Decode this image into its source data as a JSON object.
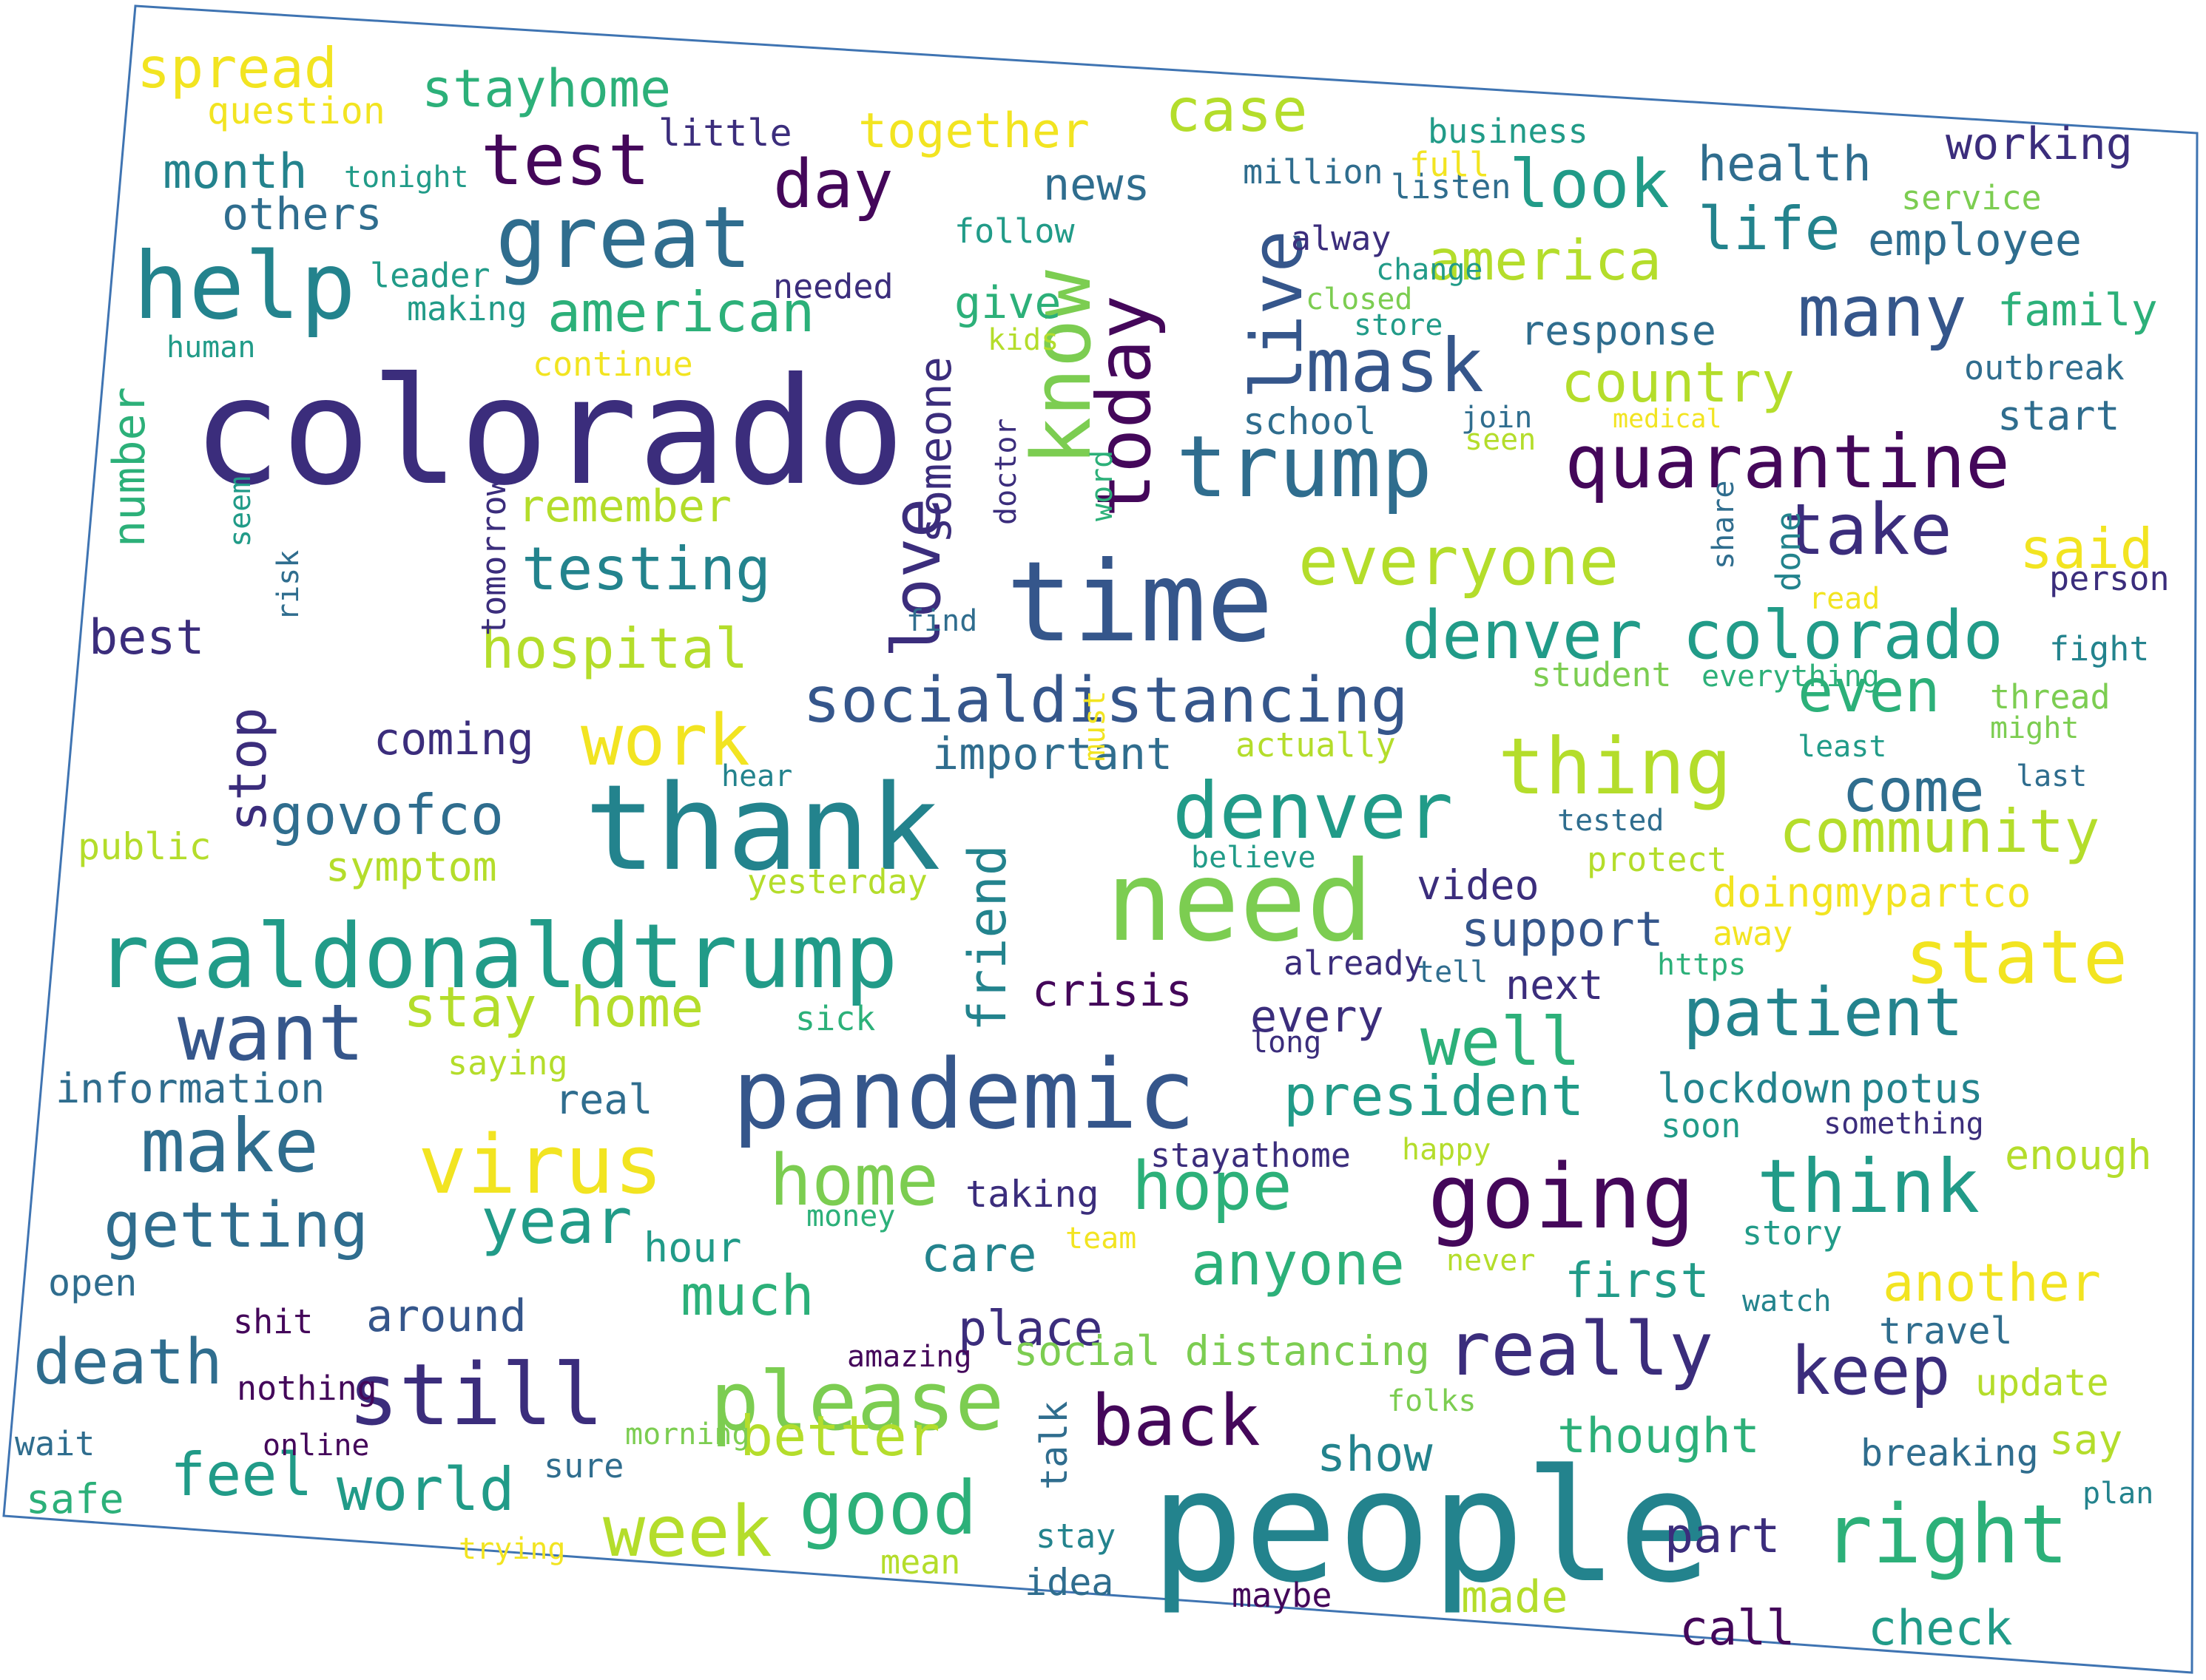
{
  "palette": {
    "purple": "#44075a",
    "indigo": "#3b2d7c",
    "blue": "#35568b",
    "steel": "#2f6d8e",
    "teal": "#23838d",
    "tealgreen": "#219b88",
    "green": "#2cb079",
    "lime": "#7ccd51",
    "yellowgreen": "#b4dd2b",
    "yellow": "#f2e421",
    "outline": "#3f74b2"
  },
  "words": [
    {
      "text": "colorado",
      "color": "indigo"
    },
    {
      "text": "people",
      "color": "teal"
    },
    {
      "text": "time",
      "color": "blue"
    },
    {
      "text": "thank",
      "color": "teal"
    },
    {
      "text": "need",
      "color": "lime"
    },
    {
      "text": "realdonaldtrump",
      "color": "tealgreen"
    },
    {
      "text": "pandemic",
      "color": "blue"
    },
    {
      "text": "going",
      "color": "purple"
    },
    {
      "text": "today",
      "color": "purple"
    },
    {
      "text": "trump",
      "color": "steel"
    },
    {
      "text": "help",
      "color": "teal"
    },
    {
      "text": "great",
      "color": "steel"
    },
    {
      "text": "know",
      "color": "lime"
    },
    {
      "text": "quarantine",
      "color": "purple"
    },
    {
      "text": "virus",
      "color": "yellow"
    },
    {
      "text": "live",
      "color": "blue"
    },
    {
      "text": "still",
      "color": "indigo"
    },
    {
      "text": "denver",
      "color": "tealgreen"
    },
    {
      "text": "please",
      "color": "lime"
    },
    {
      "text": "right",
      "color": "green"
    },
    {
      "text": "thing",
      "color": "yellowgreen"
    },
    {
      "text": "state",
      "color": "yellow"
    },
    {
      "text": "socialdistancing",
      "color": "blue"
    },
    {
      "text": "want",
      "color": "blue"
    },
    {
      "text": "make",
      "color": "steel"
    },
    {
      "text": "think",
      "color": "tealgreen"
    },
    {
      "text": "test",
      "color": "purple"
    },
    {
      "text": "mask",
      "color": "blue"
    },
    {
      "text": "really",
      "color": "indigo"
    },
    {
      "text": "good",
      "color": "green"
    },
    {
      "text": "week",
      "color": "yellowgreen"
    },
    {
      "text": "work",
      "color": "yellow"
    },
    {
      "text": "love",
      "color": "indigo"
    },
    {
      "text": "home",
      "color": "lime"
    },
    {
      "text": "back",
      "color": "purple"
    },
    {
      "text": "hope",
      "color": "green"
    },
    {
      "text": "many",
      "color": "blue"
    },
    {
      "text": "take",
      "color": "indigo"
    },
    {
      "text": "day",
      "color": "purple"
    },
    {
      "text": "look",
      "color": "tealgreen"
    },
    {
      "text": "keep",
      "color": "indigo"
    },
    {
      "text": "denver colorado",
      "color": "tealgreen"
    },
    {
      "text": "everyone",
      "color": "yellowgreen"
    },
    {
      "text": "patient",
      "color": "teal"
    },
    {
      "text": "well",
      "color": "green"
    },
    {
      "text": "death",
      "color": "steel"
    },
    {
      "text": "case",
      "color": "yellowgreen"
    },
    {
      "text": "getting",
      "color": "steel"
    },
    {
      "text": "year",
      "color": "tealgreen"
    },
    {
      "text": "testing",
      "color": "teal"
    },
    {
      "text": "anyone",
      "color": "green"
    },
    {
      "text": "president",
      "color": "tealgreen"
    },
    {
      "text": "community",
      "color": "yellowgreen"
    },
    {
      "text": "world",
      "color": "tealgreen"
    },
    {
      "text": "feel",
      "color": "tealgreen"
    },
    {
      "text": "even",
      "color": "green"
    },
    {
      "text": "american",
      "color": "green"
    },
    {
      "text": "much",
      "color": "green"
    },
    {
      "text": "better",
      "color": "yellowgreen"
    },
    {
      "text": "hospital",
      "color": "yellowgreen"
    },
    {
      "text": "govofco",
      "color": "steel"
    },
    {
      "text": "stay home",
      "color": "yellowgreen"
    },
    {
      "text": "country",
      "color": "yellowgreen"
    },
    {
      "text": "america",
      "color": "yellowgreen"
    },
    {
      "text": "life",
      "color": "teal"
    },
    {
      "text": "come",
      "color": "steel"
    },
    {
      "text": "said",
      "color": "yellow"
    },
    {
      "text": "friend",
      "color": "teal"
    },
    {
      "text": "another",
      "color": "yellow"
    },
    {
      "text": "spread",
      "color": "yellow"
    },
    {
      "text": "stayhome",
      "color": "green"
    },
    {
      "text": "stop",
      "color": "indigo"
    },
    {
      "text": "support",
      "color": "blue"
    },
    {
      "text": "first",
      "color": "tealgreen"
    },
    {
      "text": "part",
      "color": "indigo"
    },
    {
      "text": "show",
      "color": "teal"
    },
    {
      "text": "thought",
      "color": "green"
    },
    {
      "text": "call",
      "color": "purple"
    },
    {
      "text": "check",
      "color": "tealgreen"
    },
    {
      "text": "made",
      "color": "yellowgreen"
    },
    {
      "text": "care",
      "color": "teal"
    },
    {
      "text": "place",
      "color": "indigo"
    },
    {
      "text": "around",
      "color": "blue"
    },
    {
      "text": "health",
      "color": "steel"
    },
    {
      "text": "working",
      "color": "indigo"
    },
    {
      "text": "employee",
      "color": "steel"
    },
    {
      "text": "family",
      "color": "green"
    },
    {
      "text": "month",
      "color": "teal"
    },
    {
      "text": "best",
      "color": "indigo"
    },
    {
      "text": "together",
      "color": "yellow"
    },
    {
      "text": "news",
      "color": "steel"
    },
    {
      "text": "give",
      "color": "green"
    },
    {
      "text": "remember",
      "color": "yellowgreen"
    },
    {
      "text": "crisis",
      "color": "purple"
    },
    {
      "text": "every",
      "color": "indigo"
    },
    {
      "text": "important",
      "color": "steel"
    },
    {
      "text": "coming",
      "color": "indigo"
    },
    {
      "text": "others",
      "color": "steel"
    },
    {
      "text": "number",
      "color": "green"
    },
    {
      "text": "someone",
      "color": "indigo"
    },
    {
      "text": "doingmypartco",
      "color": "yellow"
    },
    {
      "text": "video",
      "color": "indigo"
    },
    {
      "text": "next",
      "color": "indigo"
    },
    {
      "text": "lockdown",
      "color": "teal"
    },
    {
      "text": "potus",
      "color": "teal"
    },
    {
      "text": "stayathome",
      "color": "indigo"
    },
    {
      "text": "taking",
      "color": "indigo"
    },
    {
      "text": "information",
      "color": "steel"
    },
    {
      "text": "real",
      "color": "steel"
    },
    {
      "text": "hour",
      "color": "tealgreen"
    },
    {
      "text": "social distancing",
      "color": "lime"
    },
    {
      "text": "travel",
      "color": "steel"
    },
    {
      "text": "say",
      "color": "yellowgreen"
    },
    {
      "text": "update",
      "color": "yellowgreen"
    },
    {
      "text": "breaking",
      "color": "steel"
    },
    {
      "text": "safe",
      "color": "green"
    },
    {
      "text": "talk",
      "color": "steel"
    },
    {
      "text": "symptom",
      "color": "yellowgreen"
    },
    {
      "text": "public",
      "color": "yellowgreen"
    },
    {
      "text": "enough",
      "color": "yellowgreen"
    },
    {
      "text": "start",
      "color": "steel"
    },
    {
      "text": "outbreak",
      "color": "steel"
    },
    {
      "text": "response",
      "color": "steel"
    },
    {
      "text": "school",
      "color": "steel"
    },
    {
      "text": "little",
      "color": "indigo"
    },
    {
      "text": "business",
      "color": "tealgreen"
    },
    {
      "text": "million",
      "color": "steel"
    },
    {
      "text": "listen",
      "color": "steel"
    },
    {
      "text": "alway",
      "color": "indigo"
    },
    {
      "text": "follow",
      "color": "tealgreen"
    },
    {
      "text": "needed",
      "color": "indigo"
    },
    {
      "text": "making",
      "color": "tealgreen"
    },
    {
      "text": "leader",
      "color": "tealgreen"
    },
    {
      "text": "human",
      "color": "tealgreen"
    },
    {
      "text": "continue",
      "color": "yellow"
    },
    {
      "text": "question",
      "color": "yellow"
    },
    {
      "text": "tonight",
      "color": "tealgreen"
    },
    {
      "text": "full",
      "color": "yellow"
    },
    {
      "text": "service",
      "color": "lime"
    },
    {
      "text": "closed",
      "color": "lime"
    },
    {
      "text": "store",
      "color": "tealgreen"
    },
    {
      "text": "kids",
      "color": "yellowgreen"
    },
    {
      "text": "join",
      "color": "steel"
    },
    {
      "text": "seen",
      "color": "yellowgreen"
    },
    {
      "text": "change",
      "color": "tealgreen"
    },
    {
      "text": "medical",
      "color": "yellow"
    },
    {
      "text": "doctor",
      "color": "indigo"
    },
    {
      "text": "word",
      "color": "green"
    },
    {
      "text": "tomorrow",
      "color": "indigo"
    },
    {
      "text": "seem",
      "color": "tealgreen"
    },
    {
      "text": "risk",
      "color": "steel"
    },
    {
      "text": "find",
      "color": "steel"
    },
    {
      "text": "share",
      "color": "steel"
    },
    {
      "text": "done",
      "color": "teal"
    },
    {
      "text": "read",
      "color": "yellow"
    },
    {
      "text": "person",
      "color": "indigo"
    },
    {
      "text": "fight",
      "color": "teal"
    },
    {
      "text": "student",
      "color": "lime"
    },
    {
      "text": "everything",
      "color": "green"
    },
    {
      "text": "thread",
      "color": "lime"
    },
    {
      "text": "might",
      "color": "lime"
    },
    {
      "text": "least",
      "color": "tealgreen"
    },
    {
      "text": "last",
      "color": "steel"
    },
    {
      "text": "tested",
      "color": "steel"
    },
    {
      "text": "protect",
      "color": "yellowgreen"
    },
    {
      "text": "believe",
      "color": "tealgreen"
    },
    {
      "text": "hear",
      "color": "teal"
    },
    {
      "text": "yesterday",
      "color": "yellowgreen"
    },
    {
      "text": "actually",
      "color": "yellowgreen"
    },
    {
      "text": "must",
      "color": "yellow"
    },
    {
      "text": "away",
      "color": "yellow"
    },
    {
      "text": "already",
      "color": "indigo"
    },
    {
      "text": "tell",
      "color": "steel"
    },
    {
      "text": "https",
      "color": "green"
    },
    {
      "text": "long",
      "color": "indigo"
    },
    {
      "text": "sick",
      "color": "green"
    },
    {
      "text": "saying",
      "color": "yellowgreen"
    },
    {
      "text": "soon",
      "color": "tealgreen"
    },
    {
      "text": "something",
      "color": "indigo"
    },
    {
      "text": "happy",
      "color": "yellowgreen"
    },
    {
      "text": "story",
      "color": "tealgreen"
    },
    {
      "text": "money",
      "color": "green"
    },
    {
      "text": "team",
      "color": "yellow"
    },
    {
      "text": "never",
      "color": "yellowgreen"
    },
    {
      "text": "watch",
      "color": "teal"
    },
    {
      "text": "open",
      "color": "steel"
    },
    {
      "text": "shit",
      "color": "purple"
    },
    {
      "text": "nothing",
      "color": "purple"
    },
    {
      "text": "amazing",
      "color": "purple"
    },
    {
      "text": "folks",
      "color": "lime"
    },
    {
      "text": "wait",
      "color": "steel"
    },
    {
      "text": "online",
      "color": "purple"
    },
    {
      "text": "morning",
      "color": "lime"
    },
    {
      "text": "sure",
      "color": "steel"
    },
    {
      "text": "trying",
      "color": "yellow"
    },
    {
      "text": "stay",
      "color": "teal"
    },
    {
      "text": "mean",
      "color": "yellowgreen"
    },
    {
      "text": "idea",
      "color": "steel"
    },
    {
      "text": "maybe",
      "color": "purple"
    },
    {
      "text": "plan",
      "color": "teal"
    }
  ]
}
